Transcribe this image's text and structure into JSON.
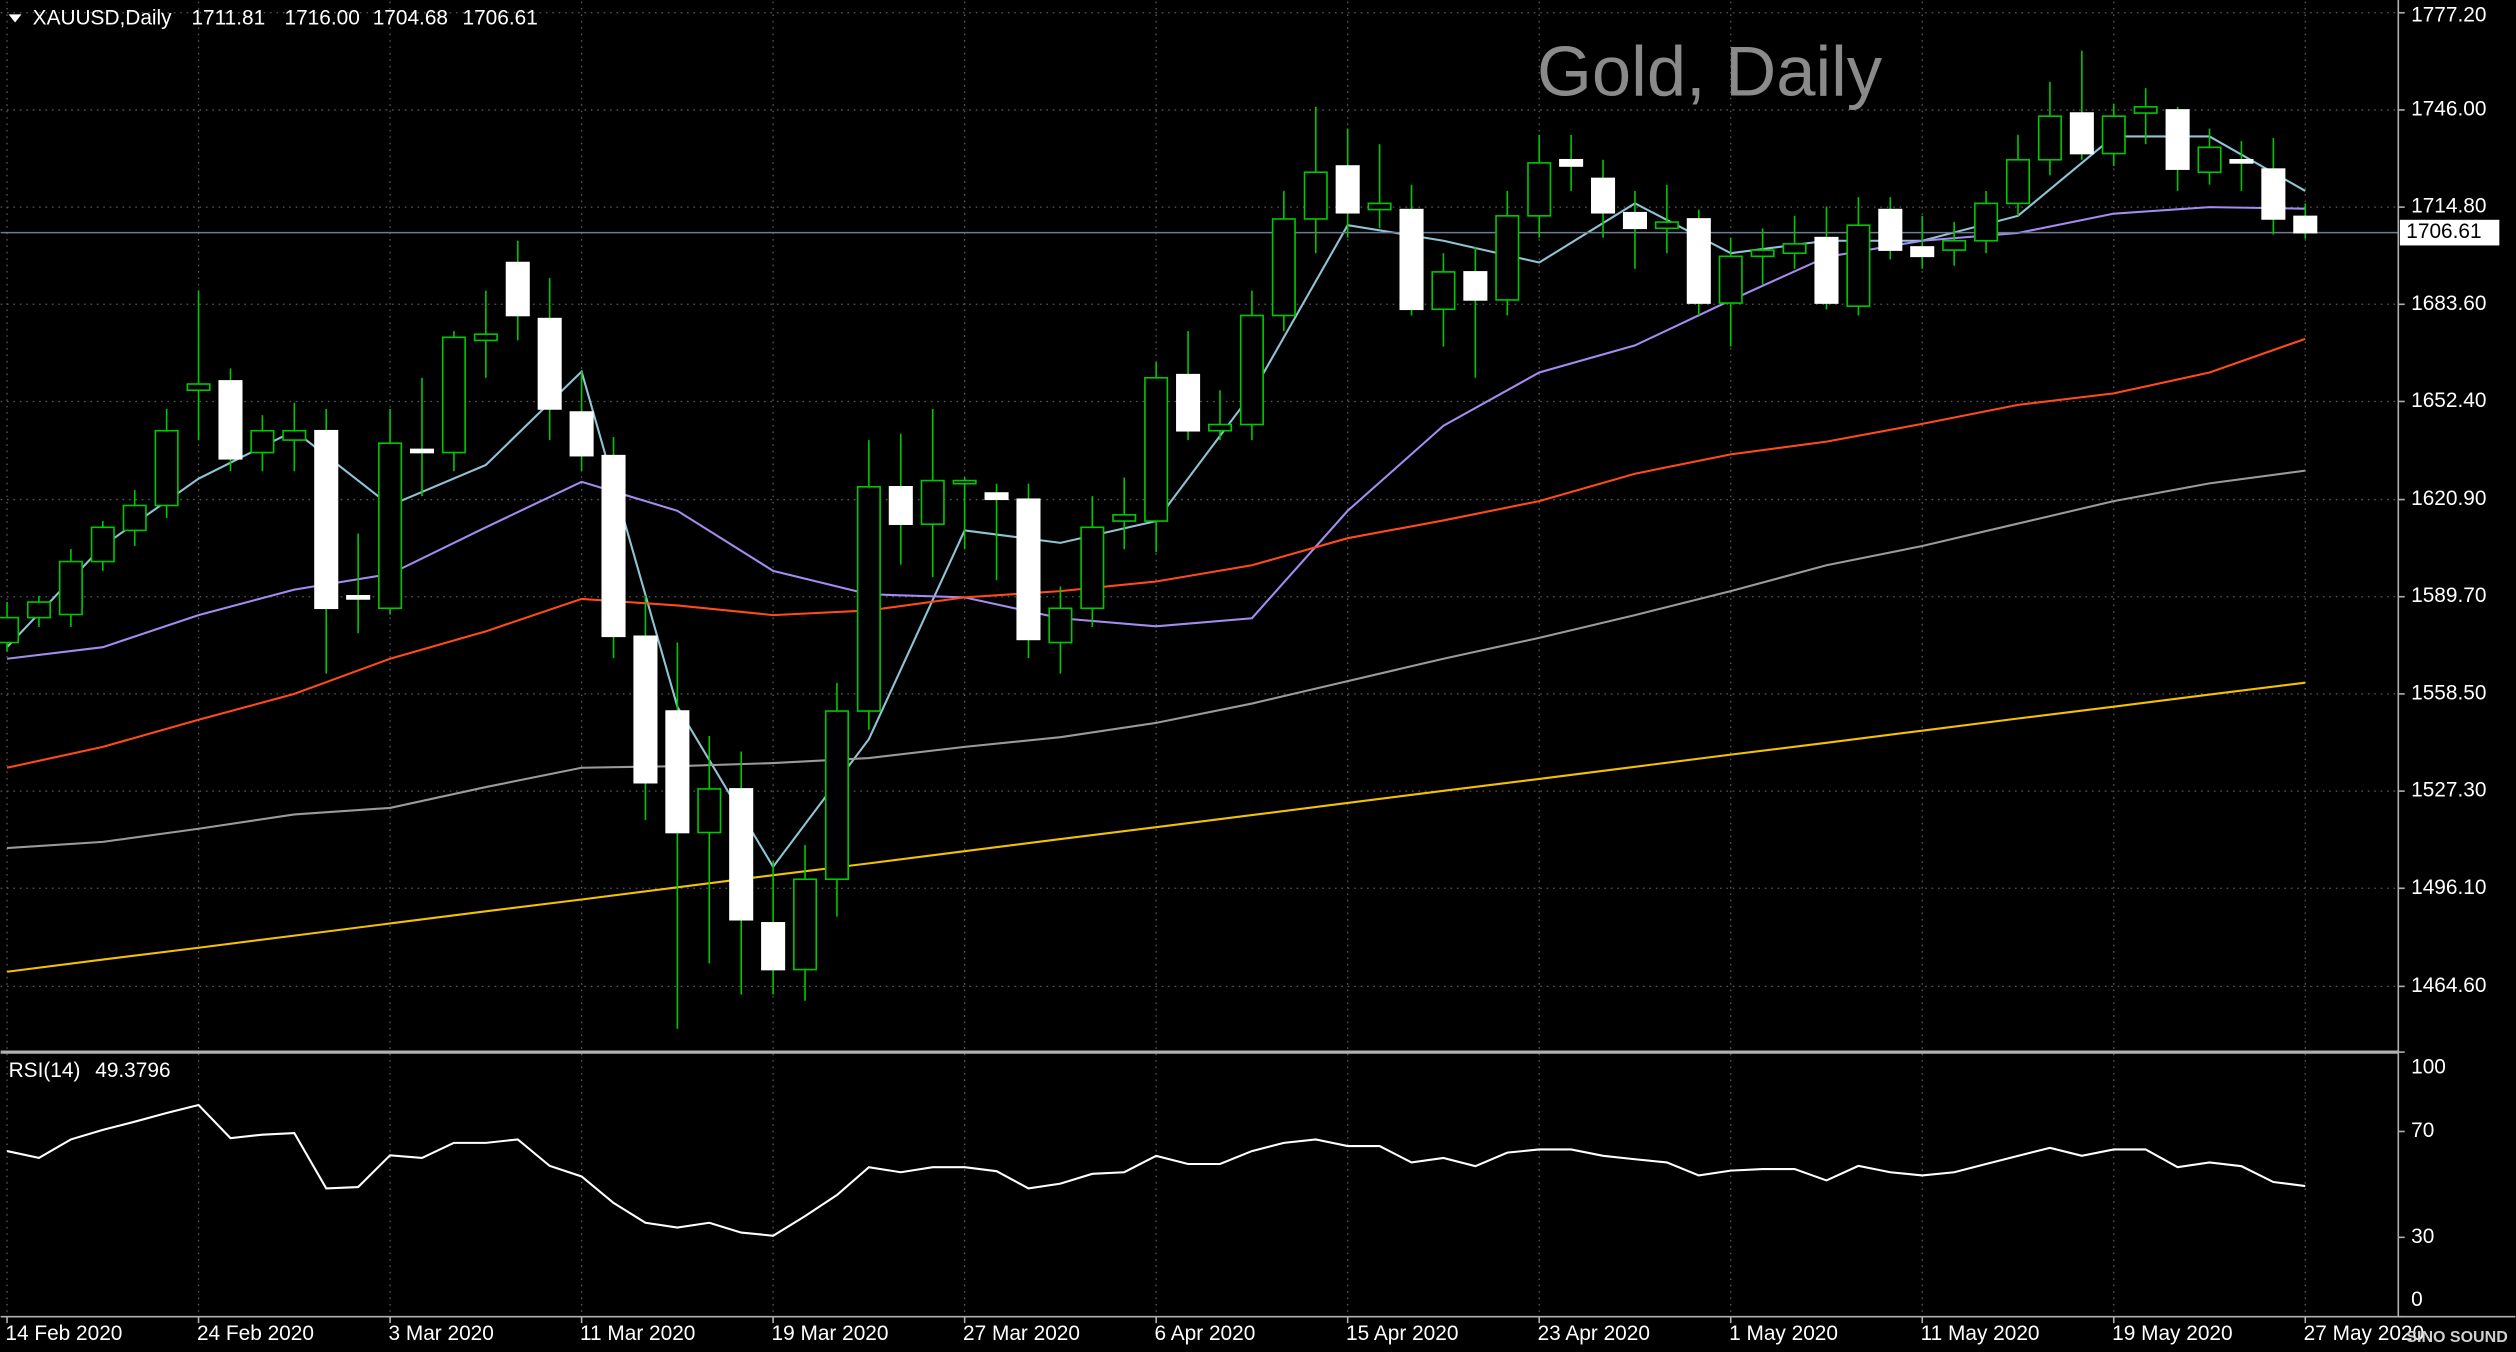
{
  "header": {
    "symbol": "XAUUSD,Daily",
    "open": "1711.81",
    "high": "1716.00",
    "low": "1704.68",
    "close": "1706.61"
  },
  "chart_data": [
    {
      "type": "candlestick",
      "title": "Gold, Daily",
      "categories": [
        "14 Feb 2020",
        null,
        null,
        null,
        null,
        null,
        "24 Feb 2020",
        null,
        null,
        null,
        null,
        null,
        "3 Mar 2020",
        null,
        null,
        null,
        null,
        null,
        "11 Mar 2020",
        null,
        null,
        null,
        null,
        null,
        "19 Mar 2020",
        null,
        null,
        null,
        null,
        null,
        "27 Mar 2020",
        null,
        null,
        null,
        null,
        null,
        "6 Apr 2020",
        null,
        null,
        null,
        null,
        null,
        "15 Apr 2020",
        null,
        null,
        null,
        null,
        null,
        "23 Apr 2020",
        null,
        null,
        null,
        null,
        null,
        "1 May 2020",
        null,
        null,
        null,
        null,
        null,
        "11 May 2020",
        null,
        null,
        null,
        null,
        null,
        "19 May 2020",
        null,
        null,
        null,
        null,
        null,
        "27 May 2020"
      ],
      "open": [
        1575,
        1583,
        1584,
        1601,
        1611,
        1619,
        1656,
        1659,
        1636,
        1640,
        1643,
        1590,
        1586,
        1637,
        1636,
        1672,
        1697,
        1679,
        1649,
        1635,
        1577,
        1553,
        1514,
        1528,
        1485,
        1470,
        1499,
        1553,
        1625,
        1613,
        1626,
        1623,
        1621,
        1575,
        1586,
        1614,
        1614,
        1661,
        1643,
        1645,
        1680,
        1711,
        1728,
        1714,
        1714,
        1682,
        1694,
        1685,
        1712,
        1730,
        1724,
        1713,
        1708,
        1711,
        1684,
        1699,
        1700,
        1705,
        1683,
        1714,
        1702,
        1701,
        1704,
        1716,
        1730,
        1745,
        1732,
        1745,
        1746,
        1726,
        1730,
        1727,
        1711.81
      ],
      "high": [
        1588,
        1590,
        1605,
        1614,
        1624,
        1650,
        1688,
        1663,
        1648,
        1652,
        1650,
        1610,
        1650,
        1660,
        1675,
        1688,
        1704,
        1692,
        1662,
        1641,
        1590,
        1575,
        1545,
        1540,
        1505,
        1510,
        1562,
        1640,
        1642,
        1650,
        1628,
        1626,
        1626,
        1593,
        1622,
        1628,
        1665,
        1675,
        1656,
        1688,
        1720,
        1747,
        1740,
        1735,
        1722,
        1700,
        1702,
        1720,
        1738,
        1738,
        1730,
        1720,
        1722,
        1714,
        1705,
        1708,
        1712,
        1715,
        1718,
        1718,
        1712,
        1710,
        1720,
        1738,
        1755,
        1765,
        1748,
        1753,
        1747,
        1740,
        1736,
        1737,
        1716
      ],
      "low": [
        1572,
        1580,
        1580,
        1598,
        1606,
        1615,
        1640,
        1630,
        1630,
        1630,
        1565,
        1578,
        1584,
        1622,
        1630,
        1660,
        1672,
        1640,
        1630,
        1570,
        1518,
        1451,
        1472,
        1462,
        1462,
        1460,
        1487,
        1547,
        1600,
        1596,
        1605,
        1595,
        1570,
        1565,
        1580,
        1605,
        1604,
        1640,
        1640,
        1640,
        1675,
        1700,
        1705,
        1708,
        1680,
        1670,
        1660,
        1680,
        1705,
        1720,
        1705,
        1695,
        1700,
        1680,
        1670,
        1690,
        1695,
        1682,
        1680,
        1698,
        1695,
        1696,
        1700,
        1712,
        1725,
        1730,
        1728,
        1735,
        1720,
        1722,
        1720,
        1706,
        1704.68
      ],
      "close": [
        1583,
        1588,
        1601,
        1612,
        1619,
        1643,
        1658,
        1634,
        1643,
        1643,
        1586,
        1589,
        1639,
        1636,
        1673,
        1674,
        1680,
        1650,
        1635,
        1577,
        1530,
        1514,
        1528,
        1486,
        1470,
        1499,
        1553,
        1625,
        1613,
        1627,
        1627,
        1621,
        1576,
        1586,
        1612,
        1616,
        1660,
        1643,
        1645,
        1680,
        1711,
        1726,
        1713,
        1716,
        1682,
        1694,
        1685,
        1712,
        1729,
        1728,
        1713,
        1708,
        1710,
        1684,
        1699,
        1701,
        1703,
        1684,
        1709,
        1701,
        1699,
        1704,
        1716,
        1730,
        1744,
        1732,
        1744,
        1747,
        1727,
        1734,
        1729,
        1711,
        1706.61
      ],
      "up_color": "#000000",
      "down_color": "#ffffff",
      "wick_color": "#00c800",
      "series": [
        {
          "color": "#8fc3d6",
          "x": [
            0,
            3,
            6,
            9,
            12,
            15,
            18,
            21,
            24,
            27,
            30,
            33,
            36,
            39,
            42,
            45,
            48,
            51,
            54,
            57,
            60,
            63,
            66,
            69,
            72
          ],
          "values": [
            1573.5,
            1606,
            1627.6,
            1643,
            1619,
            1632,
            1662,
            1554.4,
            1503,
            1544,
            1611,
            1607,
            1614,
            1655,
            1709,
            1704,
            1697,
            1716,
            1700,
            1704,
            1704,
            1712,
            1737.5,
            1737.5,
            1720
          ]
        },
        {
          "color": "#a58bf0",
          "x": [
            0,
            3,
            6,
            9,
            12,
            15,
            18,
            21,
            24,
            27,
            30,
            33,
            36,
            39,
            42,
            45,
            48,
            51,
            54,
            57,
            60,
            63,
            66,
            69,
            72
          ],
          "values": [
            1569.8,
            1573.5,
            1583.8,
            1592,
            1597,
            1612,
            1626.6,
            1617.3,
            1598,
            1590.5,
            1589.5,
            1582.8,
            1580.2,
            1582.8,
            1617.3,
            1644.6,
            1661.7,
            1670.4,
            1684.9,
            1698.8,
            1704,
            1706.5,
            1712.7,
            1714.8,
            1714.3
          ]
        },
        {
          "color": "#ff4a1c",
          "x": [
            0,
            3,
            6,
            9,
            12,
            15,
            18,
            21,
            24,
            27,
            30,
            33,
            36,
            39,
            42,
            45,
            48,
            51,
            54,
            57,
            60,
            63,
            66,
            69,
            72
          ],
          "values": [
            1534.8,
            1541.5,
            1550.2,
            1558.5,
            1569.8,
            1578.6,
            1589,
            1586.9,
            1583.8,
            1585.3,
            1589.5,
            1591.5,
            1594.6,
            1599.8,
            1608.5,
            1614.2,
            1620.4,
            1629.2,
            1635.4,
            1639.5,
            1645.2,
            1651.3,
            1655,
            1661.7,
            1672.5
          ]
        },
        {
          "color": "#9a9a9a",
          "x": [
            0,
            3,
            6,
            9,
            12,
            15,
            18,
            21,
            24,
            27,
            30,
            33,
            36,
            39,
            42,
            45,
            48,
            51,
            54,
            57,
            60,
            63,
            66,
            69,
            72
          ],
          "values": [
            1509,
            1511,
            1515.2,
            1519.8,
            1521.9,
            1528.6,
            1534.8,
            1535.3,
            1536.3,
            1537.9,
            1541.5,
            1544.6,
            1549.2,
            1555.4,
            1562.6,
            1569.8,
            1576.5,
            1583.8,
            1591.5,
            1599.8,
            1606,
            1613.2,
            1620.4,
            1626.1,
            1630.2
          ]
        },
        {
          "color": "#f2c200",
          "x": [
            0,
            3,
            6,
            9,
            12,
            15,
            18,
            21,
            24,
            27,
            30,
            33,
            36,
            39,
            42,
            45,
            48,
            51,
            54,
            57,
            60,
            63,
            66,
            69,
            72
          ],
          "values": [
            1469.3,
            1473.2,
            1477,
            1480.9,
            1484.8,
            1488.7,
            1492.5,
            1496.4,
            1500.3,
            1504.1,
            1508,
            1511.9,
            1515.7,
            1519.6,
            1523.5,
            1527.4,
            1531.2,
            1535.1,
            1539,
            1542.8,
            1546.7,
            1550.6,
            1554.4,
            1558.3,
            1562.1
          ]
        }
      ],
      "price_line": {
        "value": 1706.61,
        "label": "1706.61",
        "color": "#6b7c93"
      },
      "ylim": [
        1443.5,
        1781.3
      ],
      "yticks": [
        {
          "value": 1777.2,
          "label": "1777.20"
        },
        {
          "value": 1746,
          "label": "1746.00"
        },
        {
          "value": 1714.8,
          "label": "1714.80"
        },
        {
          "value": 1683.6,
          "label": "1683.60"
        },
        {
          "value": 1652.4,
          "label": "1652.40"
        },
        {
          "value": 1620.9,
          "label": "1620.90"
        },
        {
          "value": 1589.7,
          "label": "1589.70"
        },
        {
          "value": 1558.5,
          "label": "1558.50"
        },
        {
          "value": 1527.3,
          "label": "1527.30"
        },
        {
          "value": 1496.1,
          "label": "1496.10"
        },
        {
          "value": 1464.6,
          "label": "1464.60"
        }
      ],
      "grid": true
    },
    {
      "type": "line",
      "title": "RSI(14)",
      "color": "#ffffff",
      "values": [
        62.6,
        60,
        67,
        70.6,
        73.7,
        77,
        80,
        67.5,
        68.8,
        69.4,
        48.5,
        49,
        61,
        60,
        65.7,
        65.7,
        67,
        57,
        53,
        43,
        35.5,
        33.7,
        35.5,
        31.8,
        30.6,
        38,
        46,
        56.5,
        54.6,
        56.5,
        56.5,
        55,
        48.5,
        50.3,
        54,
        54.6,
        60.8,
        57.7,
        57.7,
        62.6,
        65.7,
        67,
        64.5,
        64.5,
        58.3,
        60,
        56.9,
        62,
        63.2,
        63.2,
        60.8,
        59.5,
        58.3,
        53.4,
        55.2,
        55.8,
        55.8,
        51.5,
        57,
        54.6,
        53.4,
        54.6,
        57.7,
        60.8,
        63.8,
        60.8,
        63.2,
        63.2,
        56.5,
        58.3,
        56.9,
        50.9,
        49.3796
      ],
      "ylim": [
        0,
        100
      ],
      "yticks": [
        100,
        70,
        30,
        0
      ]
    }
  ],
  "logo": "SINO SOUND"
}
